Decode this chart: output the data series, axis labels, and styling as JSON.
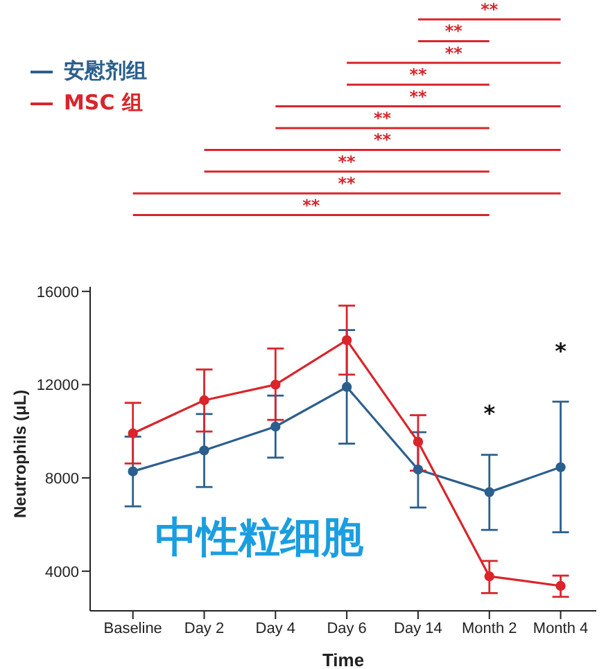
{
  "chart_data": {
    "type": "line",
    "xlabel": "Time",
    "ylabel": "Neutrophils (μL)",
    "categories": [
      "Baseline",
      "Day 2",
      "Day 4",
      "Day 6",
      "Day 14",
      "Month 2",
      "Month  4"
    ],
    "series": [
      {
        "name": "安慰剂组",
        "color": "#2b5f8e",
        "values": [
          8280,
          9180,
          10200,
          11900,
          8360,
          7390,
          8460
        ],
        "errors": [
          [
            6780,
            9770
          ],
          [
            7610,
            10740
          ],
          [
            8870,
            11530
          ],
          [
            9470,
            14340
          ],
          [
            6730,
            9960
          ],
          [
            5770,
            8990
          ],
          [
            5670,
            11270
          ]
        ]
      },
      {
        "name": "MSC 组",
        "color": "#d9252b",
        "values": [
          9910,
          11330,
          12000,
          13910,
          9550,
          3780,
          3370
        ],
        "errors": [
          [
            8620,
            11220
          ],
          [
            9990,
            12650
          ],
          [
            10490,
            13550
          ],
          [
            12430,
            15390
          ],
          [
            8310,
            10690
          ],
          [
            3060,
            4440
          ],
          [
            2900,
            3810
          ]
        ]
      }
    ],
    "ylim": [
      2300,
      16200
    ],
    "yticks": [
      4000,
      8000,
      12000,
      16000
    ],
    "grid": false,
    "legend": "top left",
    "marker": "circle",
    "line_style": "solid",
    "annotations": [
      "**",
      "**",
      "**",
      "**",
      "**",
      "**",
      "**",
      "**",
      "**",
      "**",
      "*",
      "*",
      "中性粒细胞"
    ]
  }
}
